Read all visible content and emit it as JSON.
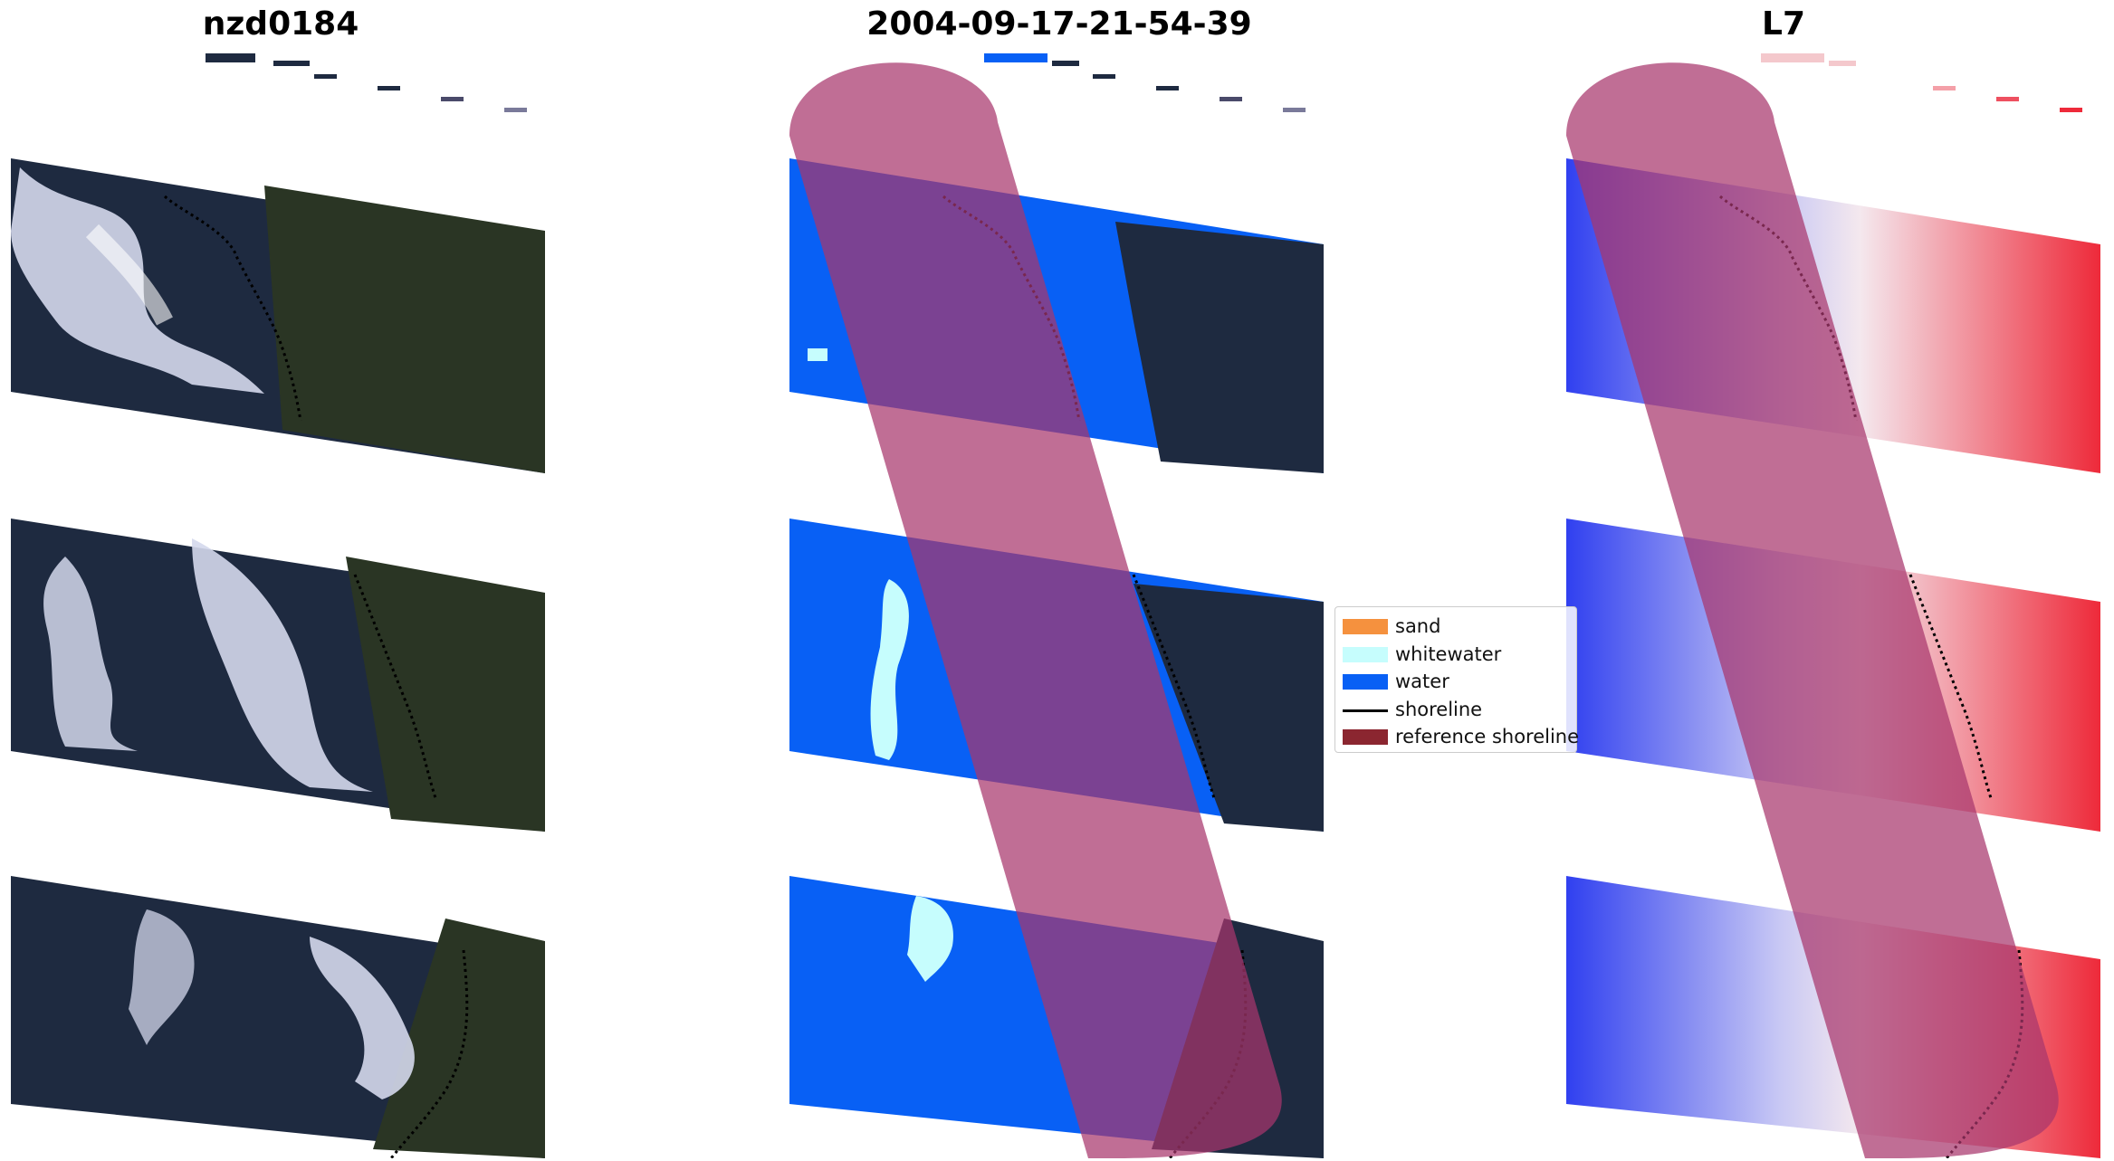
{
  "panels": [
    {
      "title": "nzd0184",
      "kind": "rgb"
    },
    {
      "title": "2004-09-17-21-54-39",
      "kind": "classified"
    },
    {
      "title": "L7",
      "kind": "index"
    }
  ],
  "legend": {
    "items": [
      {
        "label": "sand",
        "color": "#f5913e",
        "type": "patch"
      },
      {
        "label": "whitewater",
        "color": "#c6fdfd",
        "type": "patch"
      },
      {
        "label": "water",
        "color": "#0860f5",
        "type": "patch"
      },
      {
        "label": "shoreline",
        "color": "#000000",
        "type": "line"
      },
      {
        "label": "reference shoreline",
        "color": "#8b2630",
        "type": "patch"
      }
    ]
  },
  "colors": {
    "ocean_dark": "#1e2a40",
    "cloud": "#d4d8ec",
    "land": "#2a3524",
    "water_class": "#0860f5",
    "whitewater_class": "#c6fdfd",
    "reference_buffer": "#a8366c",
    "index_blue": "#3040f0",
    "index_red": "#ee2a3a"
  }
}
